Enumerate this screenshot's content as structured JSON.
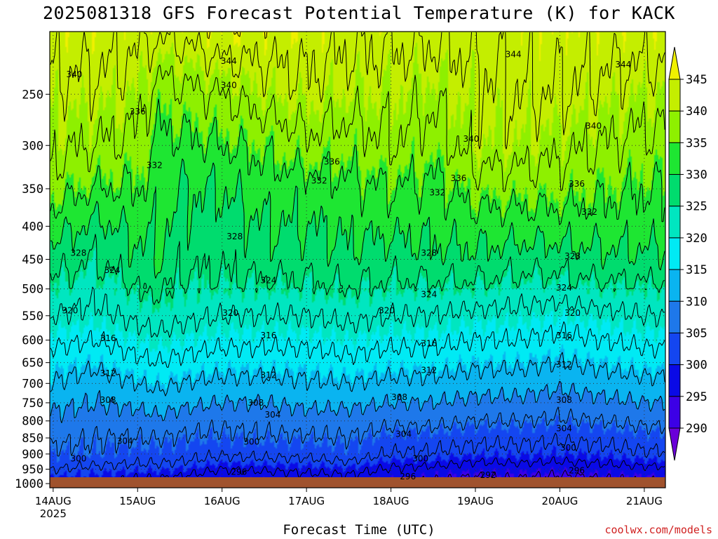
{
  "title": "2025081318 GFS Forecast Potential Temperature (K) for KACK",
  "credit": "coolwx.com/models",
  "colors": {
    "ground": "#a0522d",
    "levels": [
      "#6a00d8",
      "#3c00e6",
      "#0a0ae6",
      "#1446f0",
      "#1e78ea",
      "#0ab4f0",
      "#00eaf4",
      "#00e6c0",
      "#00dc6e",
      "#1ee632",
      "#8ef000",
      "#c4ee00",
      "#f0f000"
    ]
  },
  "chart_data": {
    "type": "heatmap",
    "title": "2025081318 GFS Forecast Potential Temperature (K) for KACK",
    "xlabel": "Forecast Time (UTC)",
    "ylabel": "",
    "x_ticks": [
      {
        "label": "14AUG",
        "sub": "2025",
        "day": 0.0
      },
      {
        "label": "15AUG",
        "sub": "",
        "day": 1.0
      },
      {
        "label": "16AUG",
        "sub": "",
        "day": 2.0
      },
      {
        "label": "17AUG",
        "sub": "",
        "day": 3.0
      },
      {
        "label": "18AUG",
        "sub": "",
        "day": 4.0
      },
      {
        "label": "19AUG",
        "sub": "",
        "day": 5.0
      },
      {
        "label": "20AUG",
        "sub": "",
        "day": 6.0
      },
      {
        "label": "21AUG",
        "sub": "",
        "day": 7.0
      }
    ],
    "xlim": [
      -0.04,
      7.25
    ],
    "y_ticks": [
      250,
      300,
      350,
      400,
      450,
      500,
      550,
      600,
      650,
      700,
      750,
      800,
      850,
      900,
      950,
      1000
    ],
    "ylim": [
      200,
      1015
    ],
    "yscale": "log",
    "yaxis_inverted": true,
    "colorbar": {
      "labels": [
        290,
        295,
        300,
        305,
        310,
        315,
        320,
        325,
        330,
        335,
        340,
        345
      ],
      "extend": "both"
    },
    "grid": true,
    "contour_interval": 4,
    "profile_levels": [
      1000,
      975,
      950,
      925,
      900,
      850,
      800,
      750,
      700,
      650,
      600,
      550,
      500,
      450,
      400,
      350,
      300,
      250,
      200
    ],
    "profile_x": [
      0,
      0.5,
      1,
      1.25,
      1.5,
      2,
      2.5,
      3,
      3.5,
      4,
      4.5,
      5,
      5.5,
      6,
      6.5,
      7,
      7.25
    ],
    "profiles": [
      [
        298,
        300,
        302,
        304,
        305,
        307,
        309,
        311,
        314,
        316,
        319,
        322,
        325,
        328,
        332,
        336,
        339,
        341,
        344
      ],
      [
        298,
        299.5,
        301,
        303,
        305,
        306,
        308,
        310,
        312,
        315,
        318,
        321,
        323,
        326,
        329,
        334,
        338,
        341,
        344
      ],
      [
        297,
        298.5,
        300.5,
        302.5,
        304,
        306,
        308,
        311,
        314,
        317,
        320,
        323,
        326,
        329,
        331,
        334,
        337,
        340,
        343
      ],
      [
        297,
        298.5,
        300.5,
        302.5,
        304,
        306,
        309,
        312,
        315,
        318,
        321,
        324,
        327,
        330,
        331,
        332,
        333,
        336,
        343
      ],
      [
        296,
        298,
        300,
        302,
        303.5,
        305.5,
        308,
        311,
        314,
        317,
        320,
        323,
        325,
        327,
        329,
        330,
        333,
        337,
        343
      ],
      [
        295,
        296,
        298,
        300.5,
        302.5,
        305,
        307,
        310,
        313,
        316,
        319,
        322,
        325,
        327,
        328,
        330,
        334,
        338,
        345
      ],
      [
        295.5,
        296.5,
        298.5,
        301,
        303,
        305.5,
        307.5,
        310,
        313,
        316,
        319,
        322,
        325,
        328,
        330,
        332,
        335,
        340,
        344
      ],
      [
        296,
        297,
        299,
        301,
        303,
        305.5,
        308,
        311,
        313.5,
        316,
        319,
        322,
        325,
        328,
        330,
        332,
        337,
        341,
        344
      ],
      [
        296.5,
        297.5,
        299.5,
        302,
        304,
        306,
        308,
        311,
        314,
        317,
        320,
        323,
        326,
        329,
        331,
        333,
        336,
        340,
        343
      ],
      [
        295,
        296,
        297.5,
        299.5,
        302,
        304,
        307,
        310,
        313,
        316,
        319,
        322,
        325,
        328,
        331,
        334,
        338,
        340,
        343
      ],
      [
        293.5,
        295,
        297,
        299.5,
        301.5,
        304,
        307,
        310,
        313,
        316,
        319,
        322,
        325,
        329,
        331,
        333,
        336,
        339,
        343
      ],
      [
        292.5,
        294,
        296,
        298,
        300.5,
        303,
        306,
        309,
        312,
        315,
        318,
        321,
        325,
        329,
        332,
        336,
        340,
        341,
        343
      ],
      [
        293,
        294.5,
        296,
        298.5,
        300.5,
        303,
        306,
        309,
        312,
        315,
        318,
        321,
        324,
        328,
        332,
        336,
        340,
        342,
        344
      ],
      [
        292,
        293.5,
        295.5,
        298,
        300,
        302.5,
        305.5,
        308,
        311,
        314,
        317,
        320,
        324,
        328,
        332,
        336,
        339,
        342,
        344
      ],
      [
        293,
        294.5,
        296.5,
        298.5,
        300.5,
        303,
        306,
        309,
        312,
        315,
        318,
        321,
        325,
        329,
        332,
        335,
        338,
        341,
        344
      ],
      [
        294,
        295,
        297,
        299.5,
        301.5,
        304,
        307,
        310,
        313,
        316,
        319,
        322,
        325,
        329,
        332,
        334,
        337,
        340,
        344
      ],
      [
        294,
        295,
        297,
        299.5,
        301.5,
        304,
        307,
        310,
        313,
        316,
        319,
        322,
        325,
        329,
        332,
        334,
        337,
        340,
        344
      ]
    ],
    "contour_labels": [
      {
        "text": "340",
        "x": 0.25,
        "p": 233
      },
      {
        "text": "344",
        "x": 2.08,
        "p": 222
      },
      {
        "text": "340",
        "x": 2.08,
        "p": 242
      },
      {
        "text": "344",
        "x": 5.45,
        "p": 217
      },
      {
        "text": "344",
        "x": 6.75,
        "p": 225
      },
      {
        "text": "340",
        "x": 6.4,
        "p": 280
      },
      {
        "text": "340",
        "x": 4.95,
        "p": 293
      },
      {
        "text": "336",
        "x": 1.0,
        "p": 266
      },
      {
        "text": "336",
        "x": 3.3,
        "p": 318
      },
      {
        "text": "336",
        "x": 4.8,
        "p": 337
      },
      {
        "text": "336",
        "x": 6.2,
        "p": 344
      },
      {
        "text": "332",
        "x": 1.2,
        "p": 322
      },
      {
        "text": "332",
        "x": 3.15,
        "p": 340
      },
      {
        "text": "332",
        "x": 4.55,
        "p": 355
      },
      {
        "text": "332",
        "x": 6.35,
        "p": 380
      },
      {
        "text": "328",
        "x": 0.3,
        "p": 440
      },
      {
        "text": "328",
        "x": 2.15,
        "p": 415
      },
      {
        "text": "328",
        "x": 4.45,
        "p": 440
      },
      {
        "text": "328",
        "x": 6.15,
        "p": 445
      },
      {
        "text": "324",
        "x": 0.7,
        "p": 468
      },
      {
        "text": "324",
        "x": 2.55,
        "p": 485
      },
      {
        "text": "324",
        "x": 4.45,
        "p": 510
      },
      {
        "text": "324",
        "x": 6.05,
        "p": 498
      },
      {
        "text": "320",
        "x": 0.2,
        "p": 540
      },
      {
        "text": "320",
        "x": 2.1,
        "p": 545
      },
      {
        "text": "320",
        "x": 3.95,
        "p": 540
      },
      {
        "text": "320",
        "x": 6.15,
        "p": 545
      },
      {
        "text": "316",
        "x": 0.65,
        "p": 596
      },
      {
        "text": "316",
        "x": 2.55,
        "p": 590
      },
      {
        "text": "316",
        "x": 4.45,
        "p": 607
      },
      {
        "text": "316",
        "x": 6.05,
        "p": 590
      },
      {
        "text": "312",
        "x": 0.65,
        "p": 675
      },
      {
        "text": "312",
        "x": 2.55,
        "p": 680
      },
      {
        "text": "312",
        "x": 4.45,
        "p": 668
      },
      {
        "text": "312",
        "x": 6.05,
        "p": 655
      },
      {
        "text": "308",
        "x": 0.65,
        "p": 743
      },
      {
        "text": "308",
        "x": 2.4,
        "p": 750
      },
      {
        "text": "308",
        "x": 4.1,
        "p": 735
      },
      {
        "text": "308",
        "x": 6.05,
        "p": 743
      },
      {
        "text": "304",
        "x": 0.85,
        "p": 860
      },
      {
        "text": "304",
        "x": 2.6,
        "p": 783
      },
      {
        "text": "304",
        "x": 4.15,
        "p": 838
      },
      {
        "text": "304",
        "x": 6.05,
        "p": 822
      },
      {
        "text": "300",
        "x": 0.3,
        "p": 915
      },
      {
        "text": "300",
        "x": 2.35,
        "p": 862
      },
      {
        "text": "300",
        "x": 4.35,
        "p": 915
      },
      {
        "text": "300",
        "x": 6.1,
        "p": 880
      },
      {
        "text": "296",
        "x": 2.2,
        "p": 960
      },
      {
        "text": "296",
        "x": 4.2,
        "p": 975
      },
      {
        "text": "296",
        "x": 6.2,
        "p": 955
      },
      {
        "text": "292",
        "x": 5.15,
        "p": 970
      }
    ]
  }
}
